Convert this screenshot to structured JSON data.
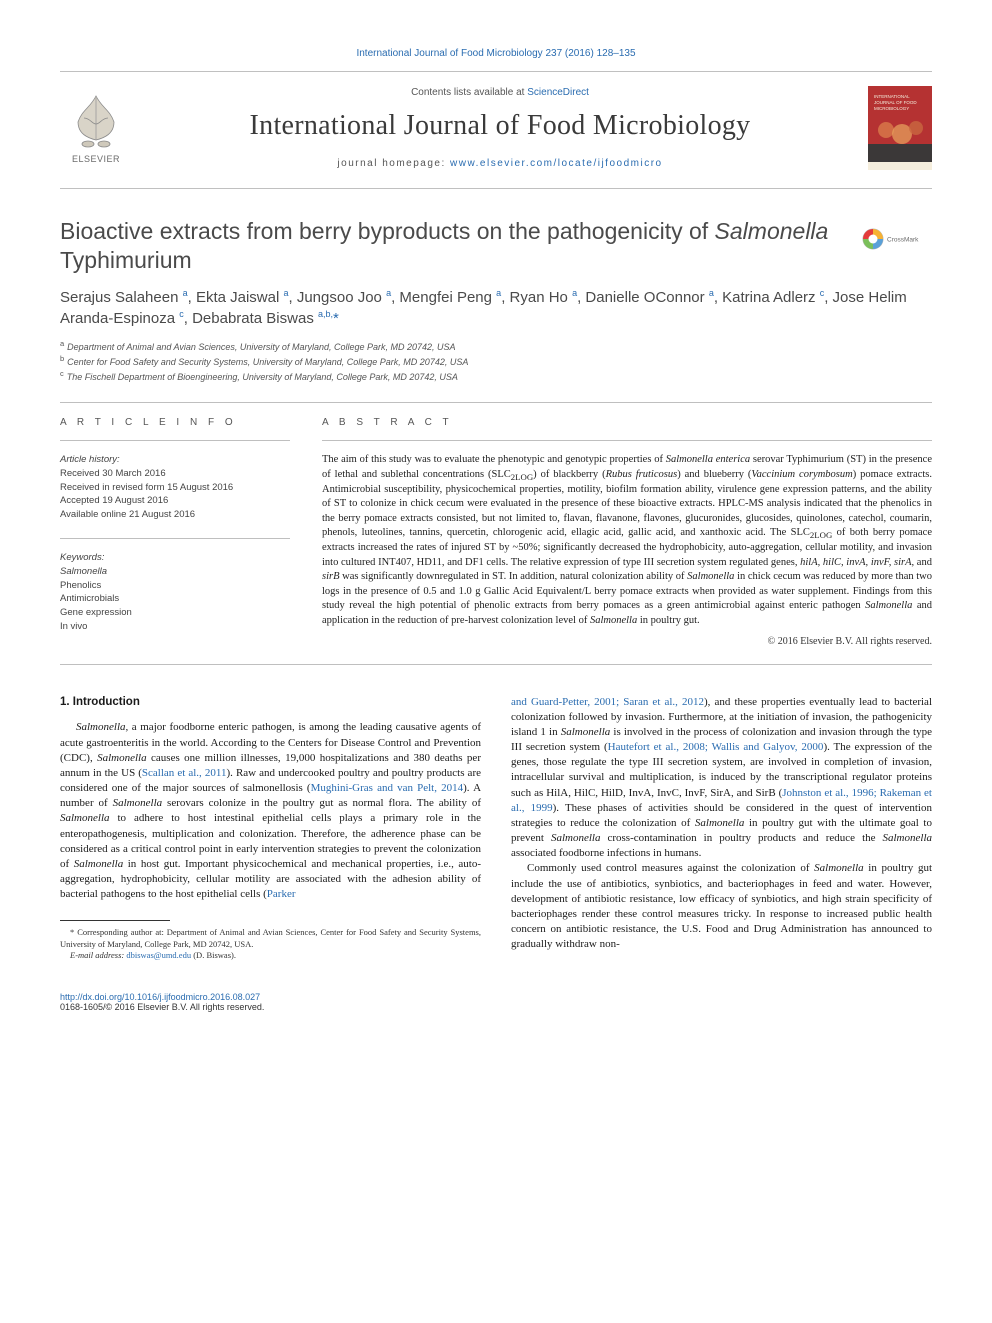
{
  "top_citation": "International Journal of Food Microbiology 237 (2016) 128–135",
  "masthead": {
    "contents_prefix": "Contents lists available at ",
    "contents_link": "ScienceDirect",
    "journal_title": "International Journal of Food Microbiology",
    "homepage_prefix": "journal homepage: ",
    "homepage_url": "www.elsevier.com/locate/ijfoodmicro"
  },
  "elsevier_logo": {
    "bg": "#ffffff",
    "tree_color": "#f3a843",
    "text_line1": "ELSEVIER"
  },
  "cover_thumb": {
    "bg": "#b53232",
    "band_top": "#f5eedd",
    "band_bottom": "#3b3838",
    "title_line1": "INTERNATIONAL",
    "title_line2": "JOURNAL OF FOOD",
    "title_line3": "MICROBIOLOGY"
  },
  "crossmark": {
    "label": "CrossMark",
    "colors": [
      "#e43b3b",
      "#f7b233",
      "#5aa0d8",
      "#7bbf5a"
    ]
  },
  "article": {
    "title_html": "Bioactive extracts from berry byproducts on the pathogenicity of <em>Salmonella</em> Typhimurium",
    "authors_html": "Serajus Salaheen <sup>a</sup>, Ekta Jaiswal <sup>a</sup>, Jungsoo Joo <sup>a</sup>, Mengfei Peng <sup>a</sup>, Ryan Ho <sup>a</sup>, Danielle OConnor <sup>a</sup>, Katrina Adlerz <sup>c</sup>, Jose Helim Aranda-Espinoza <sup>c</sup>, Debabrata Biswas <sup>a,b,</sup><span class=\"corr\">*</span>",
    "affiliations": [
      {
        "sup": "a",
        "text": "Department of Animal and Avian Sciences, University of Maryland, College Park, MD 20742, USA"
      },
      {
        "sup": "b",
        "text": "Center for Food Safety and Security Systems, University of Maryland, College Park, MD 20742, USA"
      },
      {
        "sup": "c",
        "text": "The Fischell Department of Bioengineering, University of Maryland, College Park, MD 20742, USA"
      }
    ]
  },
  "info": {
    "label_info": "A R T I C L E   I N F O",
    "history_heading": "Article history:",
    "history": [
      "Received 30 March 2016",
      "Received in revised form 15 August 2016",
      "Accepted 19 August 2016",
      "Available online 21 August 2016"
    ],
    "keywords_heading": "Keywords:",
    "keywords": [
      "Salmonella",
      "Phenolics",
      "Antimicrobials",
      "Gene expression",
      "In vivo"
    ]
  },
  "abstract": {
    "label": "A B S T R A C T",
    "text_html": "The aim of this study was to evaluate the phenotypic and genotypic properties of <em>Salmonella enterica</em> serovar Typhimurium (ST) in the presence of lethal and sublethal concentrations (SLC<sub>2LOG</sub>) of blackberry (<em>Rubus fruticosus</em>) and blueberry (<em>Vaccinium corymbosum</em>) pomace extracts. Antimicrobial susceptibility, physicochemical properties, motility, biofilm formation ability, virulence gene expression patterns, and the ability of ST to colonize in chick cecum were evaluated in the presence of these bioactive extracts. HPLC-MS analysis indicated that the phenolics in the berry pomace extracts consisted, but not limited to, flavan, flavanone, flavones, glucuronides, glucosides, quinolones, catechol, coumarin, phenols, luteolines, tannins, quercetin, chlorogenic acid, ellagic acid, gallic acid, and xanthoxic acid. The SLC<sub>2LOG</sub> of both berry pomace extracts increased the rates of injured ST by ~50%; significantly decreased the hydrophobicity, auto-aggregation, cellular motility, and invasion into cultured INT407, HD11, and DF1 cells. The relative expression of type III secretion system regulated genes, <em>hilA, hilC, invA, invF, sirA,</em> and <em>sirB</em> was significantly downregulated in ST. In addition, natural colonization ability of <em>Salmonella</em> in chick cecum was reduced by more than two logs in the presence of 0.5 and 1.0 g Gallic Acid Equivalent/L berry pomace extracts when provided as water supplement. Findings from this study reveal the high potential of phenolic extracts from berry pomaces as a green antimicrobial against enteric pathogen <em>Salmonella</em> and application in the reduction of pre-harvest colonization level of <em>Salmonella</em> in poultry gut.",
    "copyright": "© 2016 Elsevier B.V. All rights reserved."
  },
  "body": {
    "heading": "1. Introduction",
    "col1_html": "<em>Salmonella,</em> a major foodborne enteric pathogen, is among the leading causative agents of acute gastroenteritis in the world. According to the Centers for Disease Control and Prevention (CDC), <em>Salmonella</em> causes one million illnesses, 19,000 hospitalizations and 380 deaths per annum in the US (<a>Scallan et al., 2011</a>). Raw and undercooked poultry and poultry products are considered one of the major sources of salmonellosis (<a>Mughini-Gras and van Pelt, 2014</a>). A number of <em>Salmonella</em> serovars colonize in the poultry gut as normal flora. The ability of <em>Salmonella</em> to adhere to host intestinal epithelial cells plays a primary role in the enteropathogenesis, multiplication and colonization. Therefore, the adherence phase can be considered as a critical control point in early intervention strategies to prevent the colonization of <em>Salmonella</em> in host gut. Important physicochemical and mechanical properties, i.e., auto-aggregation, hydrophobicity, cellular motility are associated with the adhesion ability of bacterial pathogens to the host epithelial cells (<a>Parker</a>",
    "col2_html": "<a>and Guard-Petter, 2001; Saran et al., 2012</a>), and these properties eventually lead to bacterial colonization followed by invasion. Furthermore, at the initiation of invasion, the pathogenicity island 1 in <em>Salmonella</em> is involved in the process of colonization and invasion through the type III secretion system (<a>Hautefort et al., 2008; Wallis and Galyov, 2000</a>). The expression of the genes, those regulate the type III secretion system, are involved in completion of invasion, intracellular survival and multiplication, is induced by the transcriptional regulator proteins such as HilA, HilC, HilD, InvA, InvC, InvF, SirA, and SirB (<a>Johnston et al., 1996; Rakeman et al., 1999</a>). These phases of activities should be considered in the quest of intervention strategies to reduce the colonization of <em>Salmonella</em> in poultry gut with the ultimate goal to prevent <em>Salmonella</em> cross-contamination in poultry products and reduce the <em>Salmonella</em> associated foodborne infections in humans.",
    "col2_p2_html": "Commonly used control measures against the colonization of <em>Salmonella</em> in poultry gut include the use of antibiotics, synbiotics, and bacteriophages in feed and water. However, development of antibiotic resistance, low efficacy of synbiotics, and high strain specificity of bacteriophages render these control measures tricky. In response to increased public health concern on antibiotic resistance, the U.S. Food and Drug Administration has announced to gradually withdraw non-"
  },
  "footnote": {
    "corr_html": "* Corresponding author at: Department of Animal and Avian Sciences, Center for Food Safety and Security Systems, University of Maryland, College Park, MD 20742, USA.",
    "email_label": "E-mail address:",
    "email": "dbiswas@umd.edu",
    "email_suffix": " (D. Biswas)."
  },
  "bottom": {
    "doi": "http://dx.doi.org/10.1016/j.ijfoodmicro.2016.08.027",
    "issn_line": "0168-1605/© 2016 Elsevier B.V. All rights reserved."
  },
  "colors": {
    "link": "#2a6cb0",
    "text": "#1a1a1a",
    "grey": "#555",
    "rule": "#bfbfbf"
  }
}
